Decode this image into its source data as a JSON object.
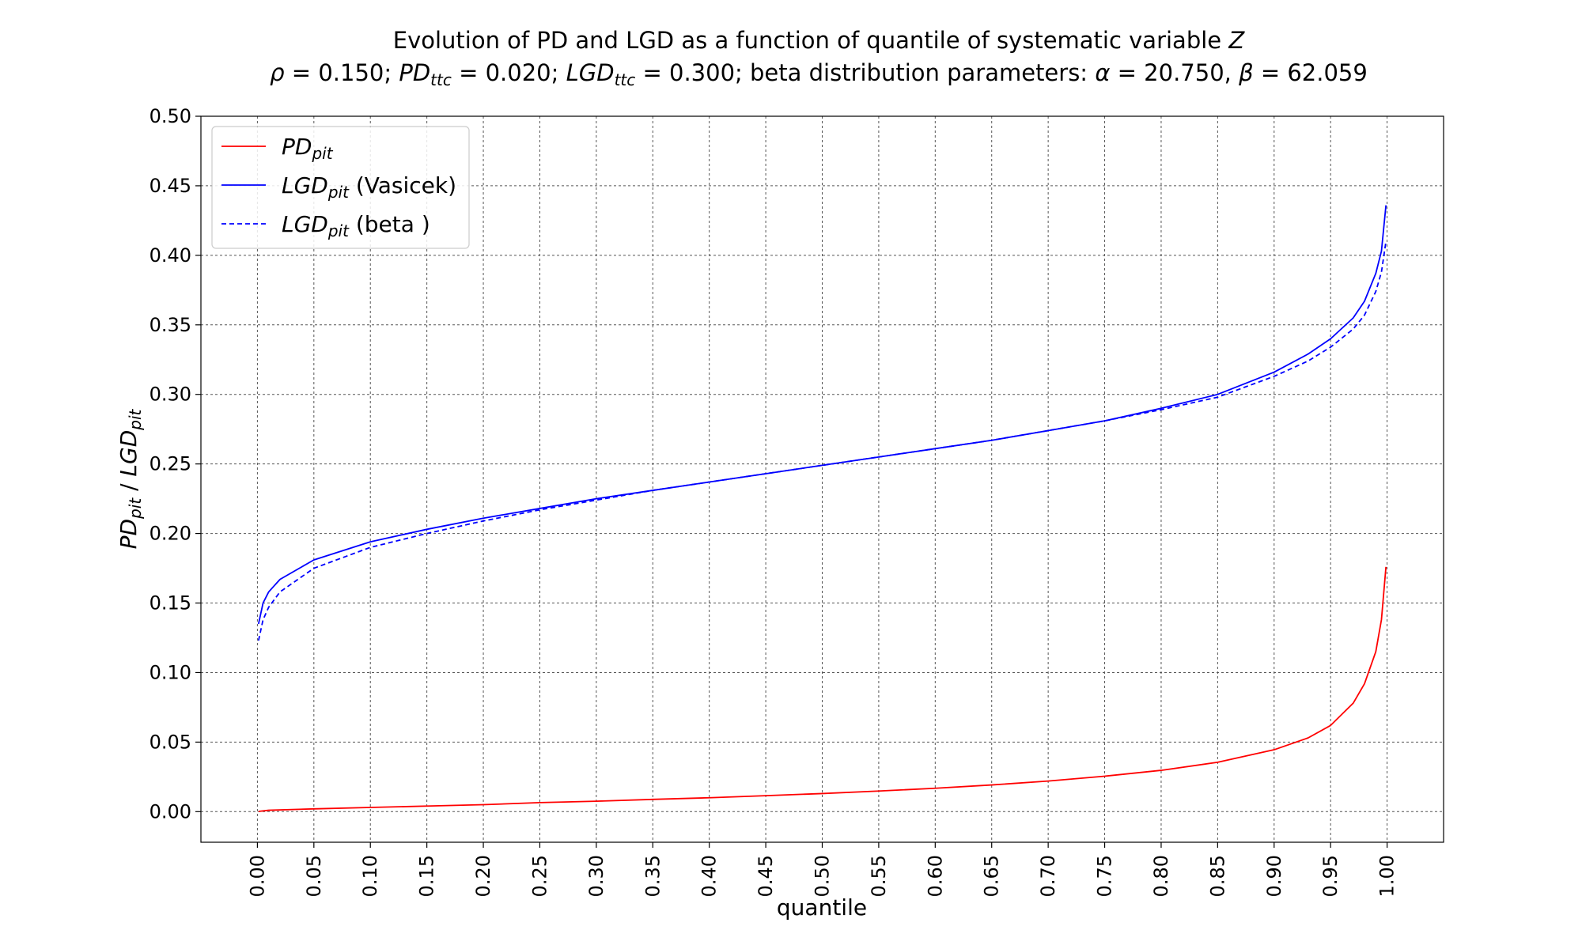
{
  "chart_data": {
    "type": "line",
    "title": {
      "line1": {
        "text": "Evolution of PD and LGD as a function of quantile of systematic variable ",
        "var": "Z"
      },
      "line2": {
        "rho_sym": "ρ",
        "rho_val": " = 0.150; ",
        "pd_main": "PD",
        "pd_sub": "ttc",
        "pd_val": " = 0.020; ",
        "lgd_main": "LGD",
        "lgd_sub": "ttc",
        "lgd_val": " = 0.300; beta distribution parameters: ",
        "alpha_sym": "α",
        "alpha_val": " = 20.750, ",
        "beta_sym": "β",
        "beta_val": " = 62.059"
      }
    },
    "xlabel": "quantile",
    "ylabel": {
      "pd_main": "PD",
      "pd_sub": "pit",
      "sep": " / ",
      "lgd_main": "LGD",
      "lgd_sub": "pit"
    },
    "xlim": [
      -0.05,
      1.05
    ],
    "ylim": [
      -0.022,
      0.5
    ],
    "x_ticks": [
      "0.00",
      "0.05",
      "0.10",
      "0.15",
      "0.20",
      "0.25",
      "0.30",
      "0.35",
      "0.40",
      "0.45",
      "0.50",
      "0.55",
      "0.60",
      "0.65",
      "0.70",
      "0.75",
      "0.80",
      "0.85",
      "0.90",
      "0.95",
      "1.00"
    ],
    "y_ticks": [
      "0.00",
      "0.05",
      "0.10",
      "0.15",
      "0.20",
      "0.25",
      "0.30",
      "0.35",
      "0.40",
      "0.45",
      "0.50"
    ],
    "grid": true,
    "legend_position": "top-left",
    "series": [
      {
        "name": {
          "main": "PD",
          "sub": "pit",
          "suffix": ""
        },
        "color": "#ff0000",
        "dash": "solid",
        "x": [
          0.001,
          0.01,
          0.05,
          0.1,
          0.15,
          0.2,
          0.25,
          0.3,
          0.35,
          0.4,
          0.45,
          0.5,
          0.55,
          0.6,
          0.65,
          0.7,
          0.75,
          0.8,
          0.85,
          0.9,
          0.93,
          0.95,
          0.97,
          0.98,
          0.99,
          0.995,
          0.999
        ],
        "y": [
          0.0002,
          0.001,
          0.002,
          0.003,
          0.004,
          0.005,
          0.0065,
          0.0075,
          0.0088,
          0.01,
          0.0115,
          0.013,
          0.0148,
          0.0168,
          0.0192,
          0.022,
          0.0255,
          0.0297,
          0.0355,
          0.0445,
          0.053,
          0.062,
          0.078,
          0.092,
          0.115,
          0.138,
          0.176
        ]
      },
      {
        "name": {
          "main": "LGD",
          "sub": "pit",
          "suffix": " (Vasicek)"
        },
        "color": "#0000ff",
        "dash": "solid",
        "x": [
          0.001,
          0.005,
          0.01,
          0.02,
          0.05,
          0.1,
          0.15,
          0.2,
          0.25,
          0.3,
          0.35,
          0.4,
          0.45,
          0.5,
          0.55,
          0.6,
          0.65,
          0.7,
          0.75,
          0.8,
          0.85,
          0.9,
          0.93,
          0.95,
          0.97,
          0.98,
          0.99,
          0.995,
          0.999
        ],
        "y": [
          0.135,
          0.15,
          0.158,
          0.167,
          0.181,
          0.194,
          0.203,
          0.211,
          0.218,
          0.225,
          0.231,
          0.237,
          0.243,
          0.249,
          0.255,
          0.261,
          0.267,
          0.274,
          0.281,
          0.29,
          0.3,
          0.316,
          0.329,
          0.34,
          0.355,
          0.367,
          0.387,
          0.403,
          0.436
        ]
      },
      {
        "name": {
          "main": "LGD",
          "sub": "pit",
          "suffix": " (beta )"
        },
        "color": "#0000ff",
        "dash": "dashed",
        "x": [
          0.001,
          0.005,
          0.01,
          0.02,
          0.05,
          0.1,
          0.15,
          0.2,
          0.25,
          0.3,
          0.35,
          0.4,
          0.45,
          0.5,
          0.55,
          0.6,
          0.65,
          0.7,
          0.75,
          0.8,
          0.85,
          0.9,
          0.93,
          0.95,
          0.97,
          0.98,
          0.99,
          0.995,
          0.999
        ],
        "y": [
          0.123,
          0.138,
          0.147,
          0.158,
          0.175,
          0.19,
          0.2,
          0.209,
          0.217,
          0.224,
          0.231,
          0.237,
          0.243,
          0.249,
          0.255,
          0.261,
          0.267,
          0.274,
          0.281,
          0.289,
          0.298,
          0.313,
          0.324,
          0.334,
          0.347,
          0.357,
          0.374,
          0.388,
          0.41
        ]
      }
    ]
  }
}
